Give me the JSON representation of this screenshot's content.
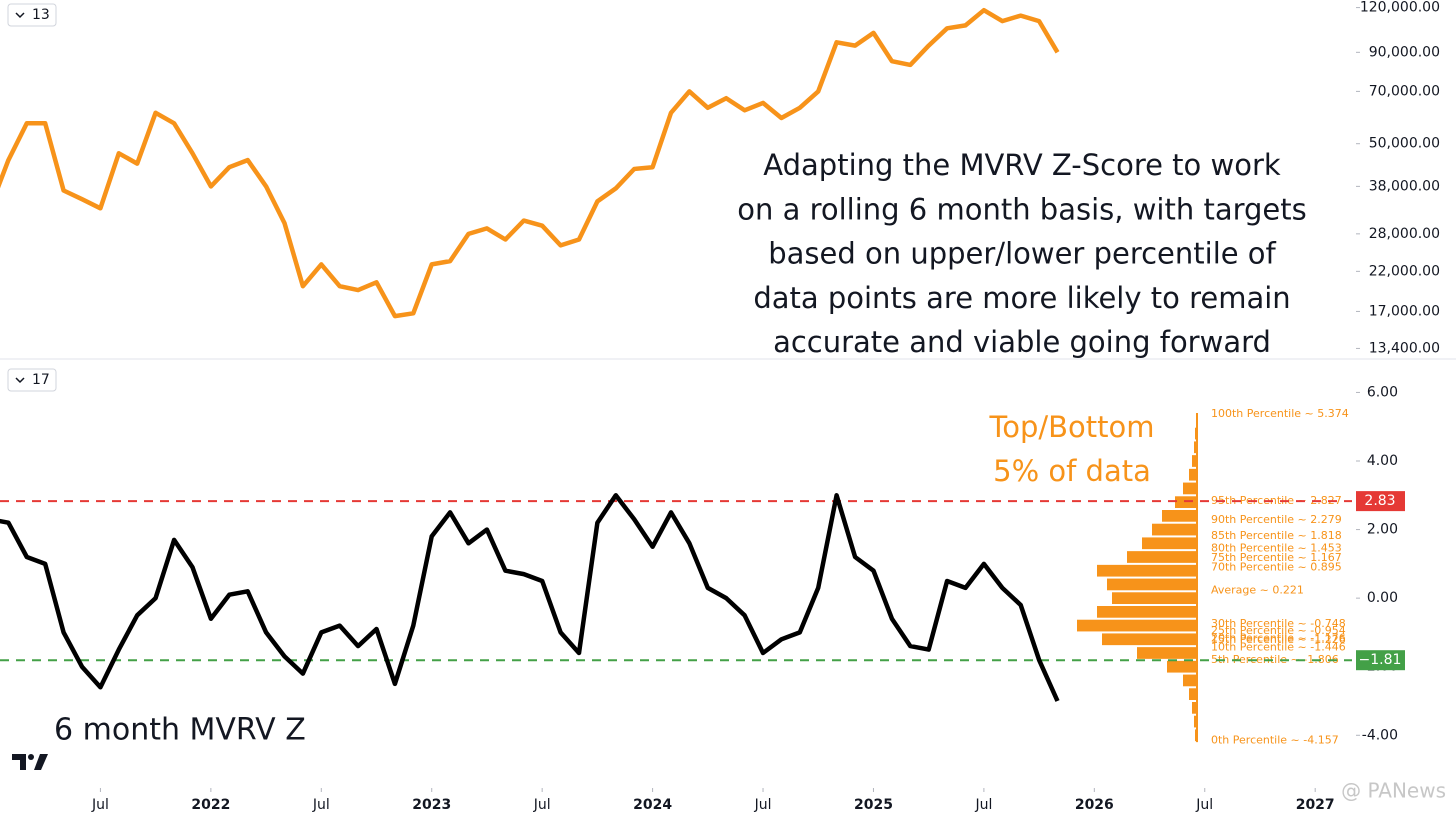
{
  "chart_data": [
    {
      "type": "line",
      "log": true,
      "x": [
        "2021-01",
        "2021-02",
        "2021-03",
        "2021-04",
        "2021-05",
        "2021-06",
        "2021-07",
        "2021-08",
        "2021-09",
        "2021-10",
        "2021-11",
        "2021-12",
        "2022-01",
        "2022-02",
        "2022-03",
        "2022-04",
        "2022-05",
        "2022-06",
        "2022-07",
        "2022-08",
        "2022-09",
        "2022-10",
        "2022-11",
        "2022-12",
        "2023-01",
        "2023-02",
        "2023-03",
        "2023-04",
        "2023-05",
        "2023-06",
        "2023-07",
        "2023-08",
        "2023-09",
        "2023-10",
        "2023-11",
        "2023-12",
        "2024-01",
        "2024-02",
        "2024-03",
        "2024-04",
        "2024-05",
        "2024-06",
        "2024-07",
        "2024-08",
        "2024-09",
        "2024-10",
        "2024-11",
        "2024-12",
        "2025-01",
        "2025-02",
        "2025-03",
        "2025-04",
        "2025-05",
        "2025-06",
        "2025-07",
        "2025-08",
        "2025-09",
        "2025-10",
        "2025-11"
      ],
      "series": [
        {
          "color": "#f7931a",
          "values": [
            33000,
            45000,
            57000,
            57000,
            37000,
            35000,
            33000,
            47000,
            44000,
            61000,
            57000,
            47000,
            38000,
            43000,
            45000,
            38000,
            30000,
            20000,
            23000,
            20000,
            19500,
            20500,
            16500,
            16800,
            23000,
            23500,
            28000,
            29000,
            27000,
            30500,
            29500,
            26000,
            27000,
            34500,
            37500,
            42500,
            43000,
            61000,
            70000,
            63000,
            67000,
            62000,
            65000,
            59000,
            63000,
            70000,
            96000,
            94000,
            102000,
            85000,
            83000,
            94000,
            105000,
            107000,
            118000,
            110000,
            114000,
            110000,
            90000
          ]
        }
      ],
      "xlim": [
        "2021-01",
        "2027-03"
      ],
      "ylim": [
        12600,
        126000
      ],
      "yticks": [
        {
          "value": 120000,
          "label": "120,000.00"
        },
        {
          "value": 90000,
          "label": "90,000.00"
        },
        {
          "value": 70000,
          "label": "70,000.00"
        },
        {
          "value": 50000,
          "label": "50,000.00"
        },
        {
          "value": 38000,
          "label": "38,000.00"
        },
        {
          "value": 28000,
          "label": "28,000.00"
        },
        {
          "value": 22000,
          "label": "22,000.00"
        },
        {
          "value": 17000,
          "label": "17,000.00"
        },
        {
          "value": 13400,
          "label": "13,400.00"
        }
      ],
      "pane_label": "13",
      "annotation": [
        "Adapting the MVRV Z-Score to work",
        "on a rolling 6 month basis, with targets",
        "based on upper/lower percentile of",
        "data points are more likely to remain",
        "accurate and viable going forward"
      ]
    },
    {
      "type": "line",
      "x": [
        "2021-01",
        "2021-02",
        "2021-03",
        "2021-04",
        "2021-05",
        "2021-06",
        "2021-07",
        "2021-08",
        "2021-09",
        "2021-10",
        "2021-11",
        "2021-12",
        "2022-01",
        "2022-02",
        "2022-03",
        "2022-04",
        "2022-05",
        "2022-06",
        "2022-07",
        "2022-08",
        "2022-09",
        "2022-10",
        "2022-11",
        "2022-12",
        "2023-01",
        "2023-02",
        "2023-03",
        "2023-04",
        "2023-05",
        "2023-06",
        "2023-07",
        "2023-08",
        "2023-09",
        "2023-10",
        "2023-11",
        "2023-12",
        "2024-01",
        "2024-02",
        "2024-03",
        "2024-04",
        "2024-05",
        "2024-06",
        "2024-07",
        "2024-08",
        "2024-09",
        "2024-10",
        "2024-11",
        "2024-12",
        "2025-01",
        "2025-02",
        "2025-03",
        "2025-04",
        "2025-05",
        "2025-06",
        "2025-07",
        "2025-08",
        "2025-09",
        "2025-10",
        "2025-11"
      ],
      "series": [
        {
          "name": "6 month MVRV Z",
          "color": "#000000",
          "values": [
            2.3,
            2.2,
            1.2,
            1.0,
            -1.0,
            -2.0,
            -2.6,
            -1.5,
            -0.5,
            0,
            1.7,
            0.9,
            -0.6,
            0.1,
            0.2,
            -1.0,
            -1.7,
            -2.2,
            -1.0,
            -0.8,
            -1.4,
            -0.9,
            -2.5,
            -0.8,
            1.8,
            2.5,
            1.6,
            2.0,
            0.8,
            0.7,
            0.5,
            -1.0,
            -1.6,
            2.2,
            3.0,
            2.3,
            1.5,
            2.5,
            1.6,
            0.3,
            0.0,
            -0.5,
            -1.6,
            -1.2,
            -1.0,
            0.3,
            3.0,
            1.2,
            0.8,
            -0.6,
            -1.4,
            -1.5,
            0.5,
            0.3,
            1.0,
            0.3,
            -0.2,
            -1.8,
            -3.0
          ]
        }
      ],
      "xlim": [
        "2021-01",
        "2027-03"
      ],
      "xticks": [
        {
          "value": "2021-07",
          "label": "Jul"
        },
        {
          "value": "2022-01",
          "label": "2022"
        },
        {
          "value": "2022-07",
          "label": "Jul"
        },
        {
          "value": "2023-01",
          "label": "2023"
        },
        {
          "value": "2023-07",
          "label": "Jul"
        },
        {
          "value": "2024-01",
          "label": "2024"
        },
        {
          "value": "2024-07",
          "label": "Jul"
        },
        {
          "value": "2025-01",
          "label": "2025"
        },
        {
          "value": "2025-07",
          "label": "Jul"
        },
        {
          "value": "2026-01",
          "label": "2026"
        },
        {
          "value": "2026-07",
          "label": "Jul"
        },
        {
          "value": "2027-01",
          "label": "2027"
        }
      ],
      "ylim": [
        -5.45,
        6.8
      ],
      "yticks": [
        {
          "value": 6,
          "label": "6.00"
        },
        {
          "value": 4,
          "label": "4.00"
        },
        {
          "value": 2,
          "label": "2.00"
        },
        {
          "value": 0,
          "label": "0.00"
        },
        {
          "value": -2,
          "label": "-2.00"
        },
        {
          "value": -4,
          "label": "-4.00"
        }
      ],
      "pane_label": "17",
      "hlines": [
        {
          "value": 2.83,
          "label": "2.83",
          "color": "#e53935"
        },
        {
          "value": -1.81,
          "label": "−1.81",
          "color": "#43a047"
        }
      ],
      "histogram": {
        "color": "#f7931a",
        "bins": [
          -4.2,
          -3.8,
          -3.4,
          -3.0,
          -2.6,
          -2.2,
          -1.8,
          -1.4,
          -1.0,
          -0.6,
          -0.2,
          0.2,
          0.6,
          1.0,
          1.4,
          1.8,
          2.2,
          2.6,
          3.0,
          3.4,
          3.8,
          4.2,
          4.6,
          5.0,
          5.4
        ],
        "counts": [
          2,
          3,
          5,
          8,
          14,
          30,
          60,
          95,
          120,
          100,
          85,
          90,
          100,
          70,
          55,
          45,
          35,
          22,
          14,
          8,
          5,
          3,
          2,
          1
        ]
      },
      "percentiles": [
        {
          "value": 5.374,
          "label": "100th Percentile ~ 5.374"
        },
        {
          "value": 2.827,
          "label": "95th Percentile ~ 2.827"
        },
        {
          "value": 2.279,
          "label": "90th Percentile ~ 2.279"
        },
        {
          "value": 1.818,
          "label": "85th Percentile ~ 1.818"
        },
        {
          "value": 1.453,
          "label": "80th Percentile ~ 1.453"
        },
        {
          "value": 1.167,
          "label": "75th Percentile ~ 1.167"
        },
        {
          "value": 0.895,
          "label": "70th Percentile ~ 0.895"
        },
        {
          "value": 0.221,
          "label": "Average ~ 0.221"
        },
        {
          "value": -0.748,
          "label": "30th Percentile ~ -0.748"
        },
        {
          "value": -0.954,
          "label": "25th Percentile ~ -0.954"
        },
        {
          "value": -1.176,
          "label": "20th Percentile ~ -1.176"
        },
        {
          "value": -1.226,
          "label": "15th Percentile ~ -1.226"
        },
        {
          "value": -1.446,
          "label": "10th Percentile ~ -1.446"
        },
        {
          "value": -1.806,
          "label": "5th Percentile ~ -1.806"
        },
        {
          "value": -4.157,
          "label": "0th Percentile ~ -4.157"
        }
      ],
      "annotation": [
        "Top/Bottom",
        "5% of data"
      ],
      "title": "6 month MVRV Z",
      "watermark": "@ PANews"
    }
  ]
}
